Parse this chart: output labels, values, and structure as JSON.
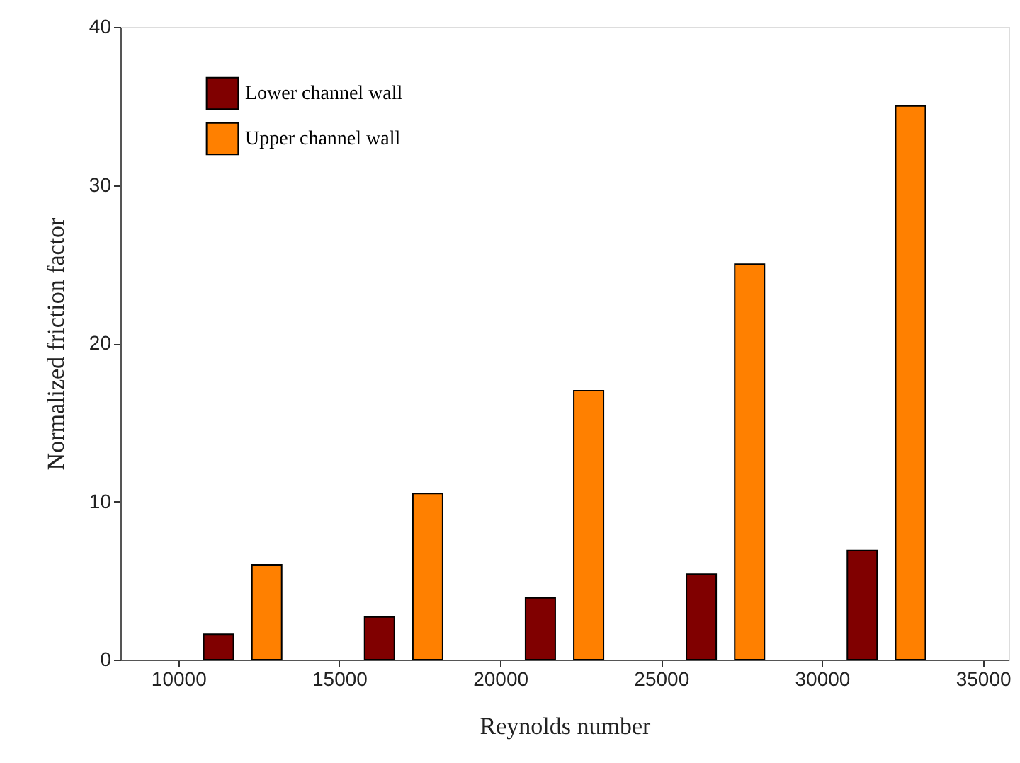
{
  "chart_data": {
    "type": "bar",
    "xlabel": "Reynolds number",
    "ylabel": "Normalized friction factor",
    "series": [
      {
        "name": "Lower channel wall",
        "color": "#800000",
        "x": [
          11250,
          16250,
          21250,
          26250,
          31250
        ],
        "values": [
          1.6,
          2.7,
          3.9,
          5.4,
          6.9
        ]
      },
      {
        "name": "Upper channel wall",
        "color": "#ff8000",
        "x": [
          12750,
          17750,
          22750,
          27750,
          32750
        ],
        "values": [
          6.0,
          10.5,
          17.0,
          25.0,
          35.0
        ]
      }
    ],
    "xlim": [
      8200,
      35800
    ],
    "xticks": [
      10000,
      15000,
      20000,
      25000,
      30000,
      35000
    ],
    "ylim": [
      0,
      40
    ],
    "yticks": [
      0,
      10,
      20,
      30,
      40
    ],
    "grid": false,
    "legend": "top left"
  }
}
